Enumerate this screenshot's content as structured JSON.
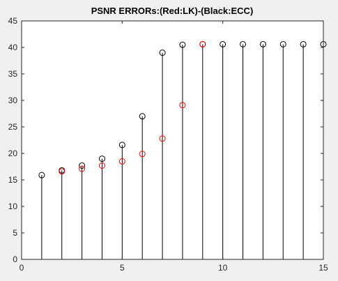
{
  "chart_data": {
    "type": "scatter",
    "style": "stem",
    "title": "PSNR ERRORs:(Red:LK)-(Black:ECC)",
    "xlabel": "",
    "ylabel": "",
    "xlim": [
      0,
      15
    ],
    "ylim": [
      0,
      45
    ],
    "xticks": [
      0,
      5,
      10,
      15
    ],
    "yticks": [
      0,
      5,
      10,
      15,
      20,
      25,
      30,
      35,
      40,
      45
    ],
    "grid": false,
    "series": [
      {
        "key": "ecc",
        "color": "#000000",
        "stems": true,
        "x": [
          1,
          2,
          3,
          4,
          5,
          6,
          7,
          8,
          9,
          10,
          11,
          12,
          13,
          14,
          15
        ],
        "y": [
          15.9,
          16.8,
          17.7,
          19.0,
          21.6,
          27.0,
          39.0,
          40.5,
          40.6,
          40.6,
          40.6,
          40.6,
          40.6,
          40.6,
          40.6
        ]
      },
      {
        "key": "lk",
        "color": "#ff0000",
        "stems": false,
        "x": [
          2,
          3,
          4,
          5,
          6,
          7,
          8,
          9
        ],
        "y": [
          16.6,
          17.1,
          17.7,
          18.5,
          19.9,
          22.8,
          29.1,
          40.6
        ]
      }
    ]
  }
}
